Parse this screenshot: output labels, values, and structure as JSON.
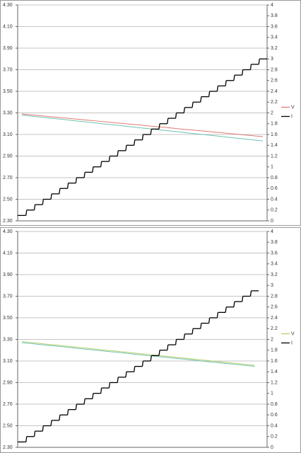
{
  "chart_data": [
    {
      "type": "line",
      "ylim": [
        2.3,
        4.3
      ],
      "yticks": [
        {
          "value": 2.3,
          "label": "2.30"
        },
        {
          "value": 2.5,
          "label": "2.50"
        },
        {
          "value": 2.7,
          "label": "2.70"
        },
        {
          "value": 2.9,
          "label": "2.90"
        },
        {
          "value": 3.1,
          "label": "3.10"
        },
        {
          "value": 3.3,
          "label": "3.30"
        },
        {
          "value": 3.5,
          "label": "3.50"
        },
        {
          "value": 3.7,
          "label": "3.70"
        },
        {
          "value": 3.9,
          "label": "3.90"
        },
        {
          "value": 4.1,
          "label": "4.10"
        },
        {
          "value": 4.3,
          "label": "4.30"
        }
      ],
      "y2lim": [
        0,
        4
      ],
      "y2ticks": [
        0,
        0.2,
        0.4,
        0.6,
        0.8,
        1,
        1.2,
        1.4,
        1.6,
        1.8,
        2,
        2.2,
        2.4,
        2.6,
        2.8,
        3,
        3.2,
        3.4,
        3.6,
        3.8,
        4
      ],
      "grid": true,
      "legend": "right",
      "series": [
        {
          "name": "V",
          "color": "#e07a74",
          "values": [
            3.29,
            3.283,
            3.276,
            3.268,
            3.261,
            3.254,
            3.247,
            3.239,
            3.232,
            3.225,
            3.218,
            3.21,
            3.203,
            3.196,
            3.189,
            3.181,
            3.174,
            3.167,
            3.16,
            3.152,
            3.145,
            3.138,
            3.131,
            3.123,
            3.116,
            3.109,
            3.102,
            3.094,
            3.087,
            3.08
          ]
        },
        {
          "color": "#6cc3b0",
          "values": [
            3.28,
            3.272,
            3.263,
            3.255,
            3.247,
            3.239,
            3.23,
            3.222,
            3.214,
            3.206,
            3.197,
            3.189,
            3.181,
            3.172,
            3.164,
            3.156,
            3.148,
            3.139,
            3.131,
            3.123,
            3.114,
            3.106,
            3.098,
            3.09,
            3.081,
            3.073,
            3.065,
            3.057,
            3.048,
            3.04
          ]
        },
        {
          "name": "I",
          "color": "#000000",
          "axis": "y2",
          "step": true,
          "values": [
            0.1,
            0.2,
            0.3,
            0.4,
            0.5,
            0.6,
            0.7,
            0.8,
            0.9,
            1,
            1.1,
            1.2,
            1.3,
            1.4,
            1.5,
            1.6,
            1.7,
            1.8,
            1.9,
            2,
            2.1,
            2.2,
            2.3,
            2.4,
            2.5,
            2.6,
            2.7,
            2.8,
            2.9,
            3
          ]
        }
      ]
    },
    {
      "type": "line",
      "ylim": [
        2.3,
        4.3
      ],
      "yticks": [
        {
          "value": 2.3,
          "label": "2.30"
        },
        {
          "value": 2.5,
          "label": "2.50"
        },
        {
          "value": 2.7,
          "label": "2.70"
        },
        {
          "value": 2.9,
          "label": "2.90"
        },
        {
          "value": 3.1,
          "label": "3.10"
        },
        {
          "value": 3.3,
          "label": "3.30"
        },
        {
          "value": 3.5,
          "label": "3.50"
        },
        {
          "value": 3.7,
          "label": "3.70"
        },
        {
          "value": 3.9,
          "label": "3.90"
        },
        {
          "value": 4.1,
          "label": "4.10"
        },
        {
          "value": 4.3,
          "label": "4.30"
        }
      ],
      "y2lim": [
        0,
        4
      ],
      "y2ticks": [
        0,
        0.2,
        0.4,
        0.6,
        0.8,
        1,
        1.2,
        1.4,
        1.6,
        1.8,
        2,
        2.2,
        2.4,
        2.6,
        2.8,
        3,
        3.2,
        3.4,
        3.6,
        3.8,
        4
      ],
      "grid": true,
      "legend": "right",
      "series": [
        {
          "name": "V",
          "color": "#b8cf6a",
          "values": [
            3.28,
            3.272,
            3.264,
            3.256,
            3.249,
            3.241,
            3.233,
            3.225,
            3.217,
            3.209,
            3.201,
            3.194,
            3.186,
            3.178,
            3.17,
            3.162,
            3.154,
            3.146,
            3.139,
            3.131,
            3.123,
            3.115,
            3.107,
            3.099,
            3.091,
            3.084,
            3.076,
            3.068,
            3.06
          ]
        },
        {
          "color": "#6cc3b0",
          "values": [
            3.27,
            3.262,
            3.254,
            3.246,
            3.239,
            3.231,
            3.223,
            3.215,
            3.207,
            3.199,
            3.191,
            3.184,
            3.176,
            3.168,
            3.16,
            3.152,
            3.144,
            3.136,
            3.129,
            3.121,
            3.113,
            3.105,
            3.097,
            3.089,
            3.081,
            3.074,
            3.066,
            3.058,
            3.05
          ]
        },
        {
          "name": "I",
          "color": "#000000",
          "axis": "y2",
          "step": true,
          "values": [
            0.1,
            0.2,
            0.3,
            0.4,
            0.5,
            0.6,
            0.7,
            0.8,
            0.9,
            1,
            1.1,
            1.2,
            1.3,
            1.4,
            1.5,
            1.6,
            1.7,
            1.8,
            1.9,
            2,
            2.1,
            2.2,
            2.3,
            2.4,
            2.5,
            2.6,
            2.7,
            2.8,
            2.9
          ]
        }
      ]
    }
  ]
}
